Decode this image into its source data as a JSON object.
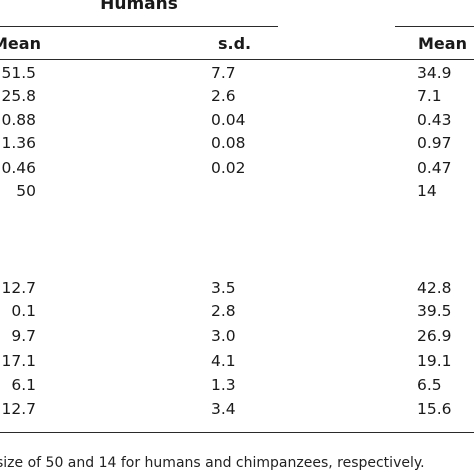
{
  "table": {
    "group_left": "Humans",
    "columns": {
      "mean_left": "Mean",
      "sd_left": "s.d.",
      "mean_right": "Mean"
    },
    "rows": [
      {
        "mean": "51.5",
        "sd": "7.7",
        "mean2": "34.9"
      },
      {
        "mean": "25.8",
        "sd": "2.6",
        "mean2": "7.1"
      },
      {
        "mean": "0.88",
        "sd": "0.04",
        "mean2": "0.43"
      },
      {
        "mean": "1.36",
        "sd": "0.08",
        "mean2": "0.97"
      },
      {
        "mean": "0.46",
        "sd": "0.02",
        "mean2": "0.47"
      },
      {
        "mean": "50",
        "sd": "",
        "mean2": "14"
      },
      {
        "mean": "",
        "sd": "",
        "mean2": ""
      },
      {
        "mean": "12.7",
        "sd": "3.5",
        "mean2": "42.8"
      },
      {
        "mean": "0.1",
        "sd": "2.8",
        "mean2": "39.5"
      },
      {
        "mean": "9.7",
        "sd": "3.0",
        "mean2": "26.9"
      },
      {
        "mean": "17.1",
        "sd": "4.1",
        "mean2": "19.1"
      },
      {
        "mean": "6.1",
        "sd": "1.3",
        "mean2": "6.5"
      },
      {
        "mean": "12.7",
        "sd": "3.4",
        "mean2": "15.6"
      }
    ],
    "footnote": "size of 50 and 14 for humans and chimpanzees, respectively."
  }
}
